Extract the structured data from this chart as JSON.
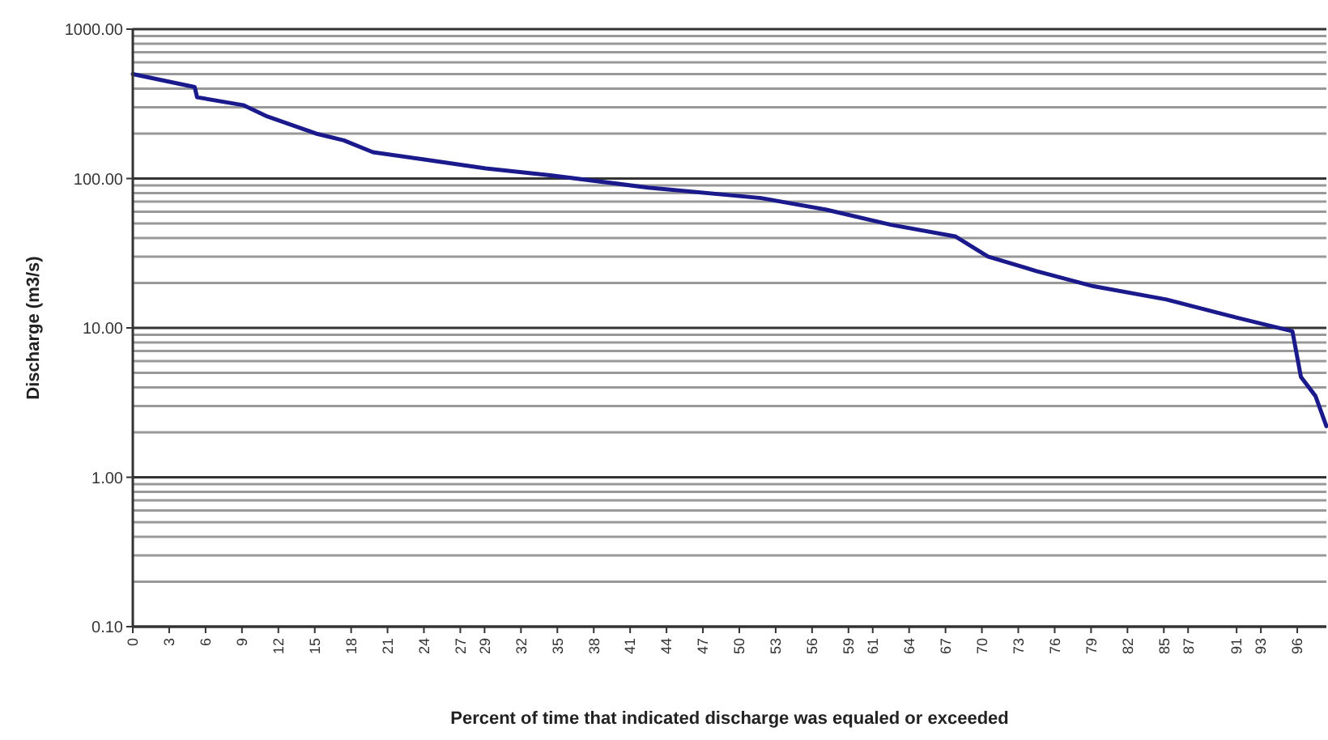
{
  "chart_data": {
    "type": "line",
    "xlabel": "Percent of time that indicated discharge was equaled or exceeded",
    "ylabel": "Discharge  (m3/s)",
    "log": "y",
    "grid": "y",
    "marker": "none",
    "line_style": "solid",
    "xlim": [
      0,
      98.4
    ],
    "xticks": [
      0,
      3,
      6,
      9,
      12,
      15,
      18,
      21,
      24,
      27,
      29,
      32,
      35,
      38,
      41,
      44,
      47,
      50,
      53,
      56,
      59,
      61,
      64,
      67,
      70,
      73,
      76,
      79,
      82,
      85,
      87,
      91,
      93,
      96
    ],
    "ylim": [
      0.1,
      1000
    ],
    "yticks": [
      {
        "value": 0.1,
        "label": "0.10"
      },
      {
        "value": 1,
        "label": "1.00"
      },
      {
        "value": 10,
        "label": "10.00"
      },
      {
        "value": 100,
        "label": "100.00"
      },
      {
        "value": 1000,
        "label": "1000.00"
      }
    ],
    "series": [
      {
        "color": "#1a1a8c",
        "x": [
          0,
          5.1,
          5.3,
          9.1,
          11.1,
          15.1,
          17.4,
          19.8,
          23.8,
          29.1,
          34.4,
          42.5,
          51.8,
          57.1,
          62.5,
          67.8,
          70.5,
          74.5,
          79.2,
          85.2,
          90.5,
          95.6,
          96.3,
          97.5,
          98.4
        ],
        "values": [
          500,
          410,
          350,
          310,
          260,
          200,
          180,
          150,
          135,
          117,
          105,
          87,
          74,
          62,
          49,
          41,
          30,
          24,
          19,
          15.5,
          12,
          9.5,
          4.7,
          3.5,
          2.2
        ]
      }
    ]
  }
}
